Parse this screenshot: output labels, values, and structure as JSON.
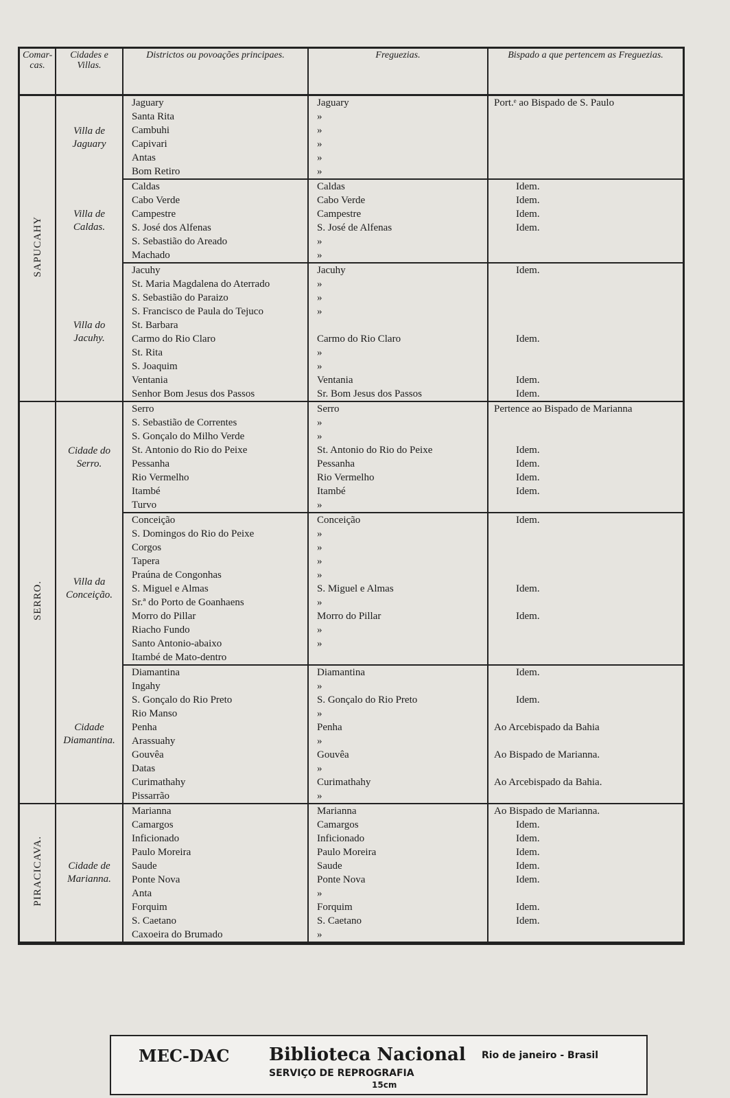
{
  "header": {
    "comarcas": "Comar-cas.",
    "villas": "Cidades e Villas.",
    "districtos": "Districtos ou povoações principaes.",
    "freguezias": "Freguezias.",
    "bispado": "Bispado a que pertencem as Freguezias."
  },
  "comarcas": [
    {
      "name": "SAPUCAHY",
      "villas": [
        {
          "name": "Villa de Jaguary",
          "rows": [
            {
              "district": "Jaguary",
              "freguezia": "Jaguary",
              "bispado": "Port.ᵉ ao Bispado de S. Paulo"
            },
            {
              "district": "Santa Rita",
              "freguezia": "»"
            },
            {
              "district": "Cambuhi",
              "freguezia": "»"
            },
            {
              "district": "Capivari",
              "freguezia": "»"
            },
            {
              "district": "Antas",
              "freguezia": "»"
            },
            {
              "district": "Bom Retiro",
              "freguezia": "»"
            }
          ]
        },
        {
          "name": "Villa de Caldas.",
          "rows": [
            {
              "district": "Caldas",
              "freguezia": "Caldas",
              "bispado": "Idem."
            },
            {
              "district": "Cabo Verde",
              "freguezia": "Cabo Verde",
              "bispado": "Idem."
            },
            {
              "district": "Campestre",
              "freguezia": "Campestre",
              "bispado": "Idem."
            },
            {
              "district": "S. José dos Alfenas",
              "freguezia": "S. José de Alfenas",
              "bispado": "Idem."
            },
            {
              "district": "S. Sebastião do Areado",
              "freguezia": "»"
            },
            {
              "district": "Machado",
              "freguezia": "»"
            }
          ]
        },
        {
          "name": "Villa do Jacuhy.",
          "rows": [
            {
              "district": "Jacuhy",
              "freguezia": "Jacuhy",
              "bispado": "Idem."
            },
            {
              "district": "St. Maria Magdalena do Aterrado",
              "freguezia": "»"
            },
            {
              "district": "S. Sebastião do Paraizo",
              "freguezia": "»"
            },
            {
              "district": "S. Francisco de Paula do Tejuco",
              "freguezia": "»"
            },
            {
              "district": "St. Barbara"
            },
            {
              "district": "Carmo do Rio Claro",
              "freguezia": "Carmo do Rio Claro",
              "bispado": "Idem."
            },
            {
              "district": "St. Rita",
              "freguezia": "»"
            },
            {
              "district": "S. Joaquim",
              "freguezia": "»"
            },
            {
              "district": "Ventania",
              "freguezia": "Ventania",
              "bispado": "Idem."
            },
            {
              "district": "Senhor Bom Jesus dos Passos",
              "freguezia": "Sr. Bom Jesus dos Passos",
              "bispado": "Idem."
            }
          ]
        }
      ]
    },
    {
      "name": "SERRO.",
      "villas": [
        {
          "name": "Cidade do Serro.",
          "rows": [
            {
              "district": "Serro",
              "freguezia": "Serro",
              "bispado": "Pertence ao Bispado de Marianna"
            },
            {
              "district": "S. Sebastião de Correntes",
              "freguezia": "»"
            },
            {
              "district": "S. Gonçalo do Milho Verde",
              "freguezia": "»"
            },
            {
              "district": "St. Antonio do Rio do Peixe",
              "freguezia": "St. Antonio do Rio do Peixe",
              "bispado": "Idem."
            },
            {
              "district": "Pessanha",
              "freguezia": "Pessanha",
              "bispado": "Idem."
            },
            {
              "district": "Rio Vermelho",
              "freguezia": "Rio Vermelho",
              "bispado": "Idem."
            },
            {
              "district": "Itambé",
              "freguezia": "Itambé",
              "bispado": "Idem."
            },
            {
              "district": "Turvo",
              "freguezia": "»"
            }
          ]
        },
        {
          "name": "Villa da Conceição.",
          "rows": [
            {
              "district": "Conceição",
              "freguezia": "Conceição",
              "bispado": "Idem."
            },
            {
              "district": "S. Domingos do Rio do Peixe",
              "freguezia": "»"
            },
            {
              "district": "Corgos",
              "freguezia": "»"
            },
            {
              "district": "Tapera",
              "freguezia": "»"
            },
            {
              "district": "Praúna de Congonhas",
              "freguezia": "»"
            },
            {
              "district": "S. Miguel e Almas",
              "freguezia": "S. Miguel e Almas",
              "bispado": "Idem."
            },
            {
              "district": "Sr.ª do Porto de Goanhaens",
              "freguezia": "»"
            },
            {
              "district": "Morro do Pillar",
              "freguezia": "Morro do Pillar",
              "bispado": "Idem."
            },
            {
              "district": "Riacho Fundo",
              "freguezia": "»"
            },
            {
              "district": "Santo Antonio-abaixo",
              "freguezia": "»"
            },
            {
              "district": "Itambé de Mato-dentro"
            }
          ]
        },
        {
          "name": "Cidade Diamantina.",
          "rows": [
            {
              "district": "Diamantina",
              "freguezia": "Diamantina",
              "bispado": "Idem."
            },
            {
              "district": "Ingahy",
              "freguezia": "»"
            },
            {
              "district": "S. Gonçalo do Rio Preto",
              "freguezia": "S. Gonçalo do Rio Preto",
              "bispado": "Idem."
            },
            {
              "district": "Rio Manso",
              "freguezia": "»"
            },
            {
              "district": "Penha",
              "freguezia": "Penha",
              "bispado": "Ao Arcebispado da Bahia"
            },
            {
              "district": "Arassuahy",
              "freguezia": "»"
            },
            {
              "district": "Gouvêa",
              "freguezia": "Gouvêa",
              "bispado": "Ao Bispado de Marianna."
            },
            {
              "district": "Datas",
              "freguezia": "»"
            },
            {
              "district": "Curimathahy",
              "freguezia": "Curimathahy",
              "bispado": "Ao Arcebispado da Bahia."
            },
            {
              "district": "Pissarrão",
              "freguezia": "»"
            }
          ]
        }
      ]
    },
    {
      "name": "PIRACICAVA.",
      "villas": [
        {
          "name": "Cidade de Marianna.",
          "rows": [
            {
              "district": "Marianna",
              "freguezia": "Marianna",
              "bispado": "Ao Bispado de Marianna."
            },
            {
              "district": "Camargos",
              "freguezia": "Camargos",
              "bispado": "Idem."
            },
            {
              "district": "Inficionado",
              "freguezia": "Inficionado",
              "bispado": "Idem."
            },
            {
              "district": "Paulo Moreira",
              "freguezia": "Paulo Moreira",
              "bispado": "Idem."
            },
            {
              "district": "Saude",
              "freguezia": "Saude",
              "bispado": "Idem."
            },
            {
              "district": "Ponte Nova",
              "freguezia": "Ponte Nova",
              "bispado": "Idem."
            },
            {
              "district": "Anta",
              "freguezia": "»"
            },
            {
              "district": "Forquim",
              "freguezia": "Forquim",
              "bispado": "Idem."
            },
            {
              "district": "S. Caetano",
              "freguezia": "S. Caetano",
              "bispado": "Idem."
            },
            {
              "district": "Caxoeira do Brumado",
              "freguezia": "»"
            }
          ]
        }
      ]
    }
  ],
  "stamp": {
    "org": "MEC-DAC",
    "library": "Biblioteca Nacional",
    "place": "Rio de janeiro - Brasil",
    "service": "SERVIÇO DE REPROGRAFIA",
    "scale": "15cm"
  }
}
